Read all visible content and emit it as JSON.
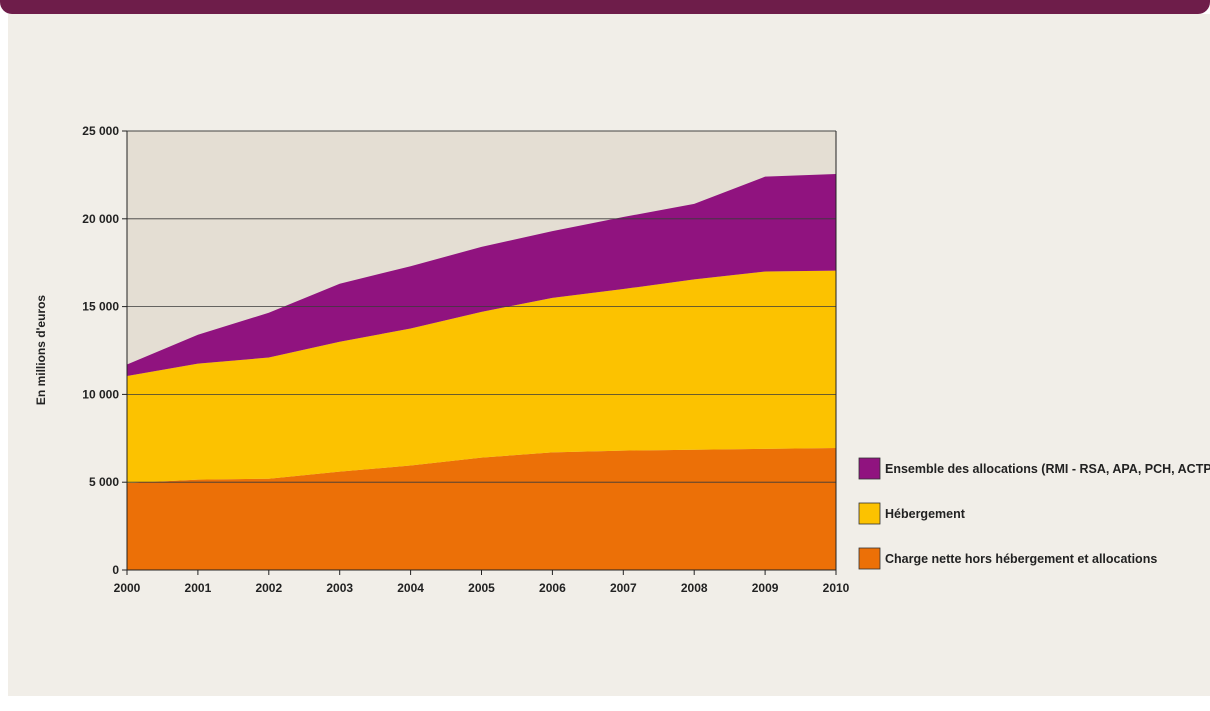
{
  "chart_data": {
    "type": "area",
    "stacked": true,
    "title": "",
    "xlabel": "",
    "ylabel": "En millions d'euros",
    "ylim": [
      0,
      25000
    ],
    "x": [
      "2000",
      "2001",
      "2002",
      "2003",
      "2004",
      "2005",
      "2006",
      "2007",
      "2008",
      "2009",
      "2010"
    ],
    "yticks": [
      {
        "value": 0,
        "label": "0"
      },
      {
        "value": 5000,
        "label": "5 000"
      },
      {
        "value": 10000,
        "label": "10 000"
      },
      {
        "value": 15000,
        "label": "15 000"
      },
      {
        "value": 20000,
        "label": "20 000"
      },
      {
        "value": 25000,
        "label": "25 000"
      }
    ],
    "grid": true,
    "legend": "right",
    "series": [
      {
        "name": "Charge nette hors hébergement et allocations",
        "color": "#ec7007",
        "values": [
          4950,
          5150,
          5200,
          5600,
          5950,
          6400,
          6700,
          6800,
          6850,
          6900,
          6950
        ]
      },
      {
        "name": "Hébergement",
        "color": "#fcc200",
        "values": [
          6100,
          6600,
          6900,
          7400,
          7800,
          8300,
          8800,
          9200,
          9700,
          10100,
          10100
        ]
      },
      {
        "name": "Ensemble des allocations (RMI - RSA, APA, PCH, ACTP)",
        "color": "#90137f",
        "values": [
          650,
          1650,
          2550,
          3300,
          3550,
          3700,
          3800,
          4100,
          4300,
          5400,
          5500
        ]
      }
    ],
    "legend_order": [
      2,
      1,
      0
    ],
    "plot_background": "#e4ded3"
  }
}
